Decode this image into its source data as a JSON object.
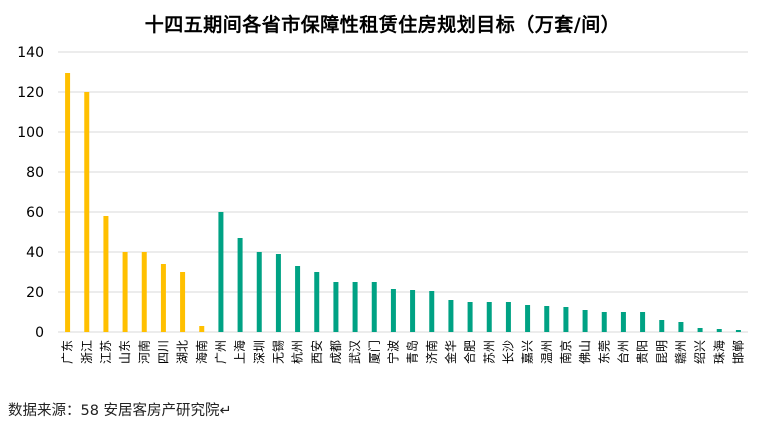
{
  "chart_data": {
    "type": "bar",
    "title": "十四五期间各省市保障性租赁住房规划目标（万套/间）",
    "xlabel": "",
    "ylabel": "",
    "ylim": [
      0,
      140
    ],
    "yticks": [
      0,
      20,
      40,
      60,
      80,
      100,
      120,
      140
    ],
    "grid": true,
    "legend": "none",
    "categories": [
      "广东",
      "浙江",
      "江苏",
      "山东",
      "河南",
      "四川",
      "湖北",
      "海南",
      "广州",
      "上海",
      "深圳",
      "无锡",
      "杭州",
      "西安",
      "成都",
      "武汉",
      "厦门",
      "宁波",
      "青岛",
      "济南",
      "金华",
      "合肥",
      "苏州",
      "长沙",
      "嘉兴",
      "温州",
      "南京",
      "佛山",
      "东莞",
      "台州",
      "贵阳",
      "昆明",
      "赣州",
      "绍兴",
      "珠海",
      "邯郸"
    ],
    "values": [
      129.5,
      120,
      58,
      40,
      40,
      34,
      30,
      3,
      60,
      47,
      40,
      39,
      33,
      30,
      25,
      25,
      25,
      21.5,
      21,
      20.5,
      16,
      15,
      15,
      15,
      13.5,
      13,
      12.5,
      11,
      10,
      10,
      10,
      6,
      5,
      2,
      1.5,
      1
    ],
    "highlight_count": 8,
    "colors": {
      "province": "#FFC000",
      "city": "#00A284",
      "grid": "#D9D9D9"
    }
  },
  "source": "数据来源：58 安居客房产研究院↵"
}
